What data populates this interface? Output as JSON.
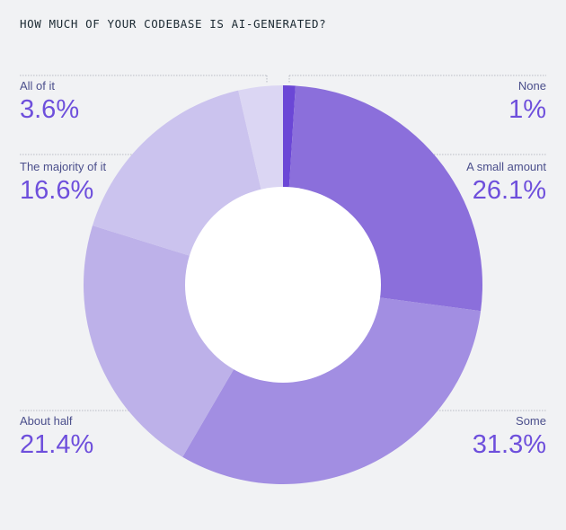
{
  "chart_data": {
    "type": "pie",
    "title": "HOW MUCH OF YOUR CODEBASE IS AI-GENERATED?",
    "categories": [
      "None",
      "A small amount",
      "Some",
      "About half",
      "The majority of it",
      "All of it"
    ],
    "values": [
      1,
      26.1,
      31.3,
      21.4,
      16.6,
      3.6
    ],
    "value_labels": [
      "1%",
      "26.1%",
      "31.3%",
      "21.4%",
      "16.6%",
      "3.6%"
    ],
    "colors": [
      "#6b47d6",
      "#8b6fdb",
      "#a28ee2",
      "#bdb1e9",
      "#cbc3ee",
      "#dbd6f3"
    ],
    "donut": true
  }
}
